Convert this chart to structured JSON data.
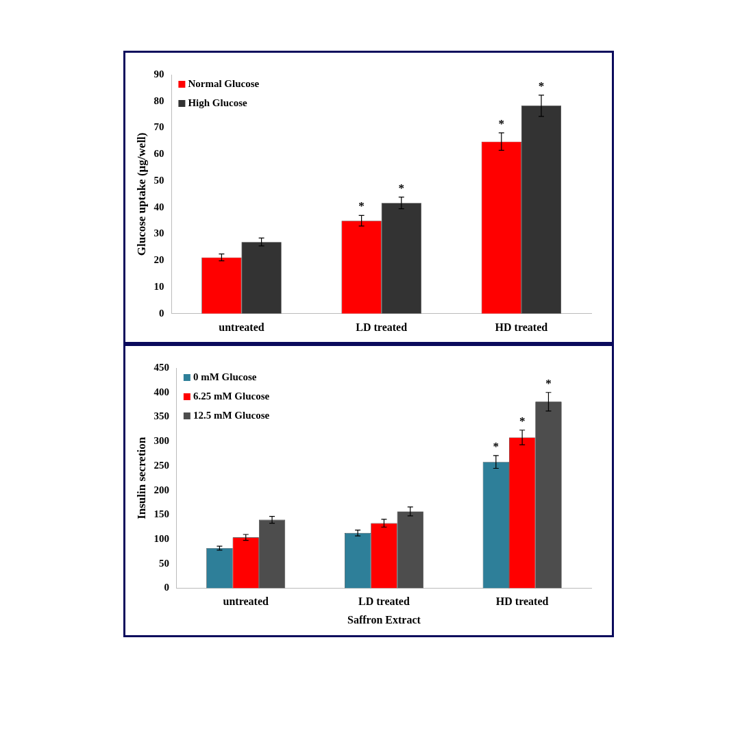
{
  "chart_data": [
    {
      "type": "bar",
      "ylabel": "Glucose uptake (µg/well)",
      "categories": [
        "untreated",
        "LD treated",
        "HD treated"
      ],
      "ylim": [
        0,
        90
      ],
      "yticks": [
        0,
        10,
        20,
        30,
        40,
        50,
        60,
        70,
        80,
        90
      ],
      "grid": false,
      "legend": "top left",
      "series": [
        {
          "name": "Normal Glucose",
          "color": "#ff0000",
          "values": [
            21.2,
            35,
            64.8
          ],
          "errors": [
            1.3,
            2,
            3.3
          ],
          "value_labels": [
            null,
            "*",
            "*"
          ]
        },
        {
          "name": "High Glucose",
          "color": "#333333",
          "values": [
            27,
            41.7,
            78.3
          ],
          "errors": [
            1.5,
            2.2,
            4
          ],
          "value_labels": [
            null,
            "*",
            "*"
          ]
        }
      ]
    },
    {
      "type": "bar",
      "ylabel": "Insulin secretion",
      "xlabel": "Saffron Extract",
      "categories": [
        "untreated",
        "LD treated",
        "HD treated"
      ],
      "ylim": [
        0,
        450
      ],
      "yticks": [
        0,
        50,
        100,
        150,
        200,
        250,
        300,
        350,
        400,
        450
      ],
      "grid": false,
      "legend": "top left",
      "series": [
        {
          "name": "0 mM Glucose",
          "color": "#2e7f99",
          "values": [
            82,
            113,
            258
          ],
          "errors": [
            4,
            6,
            13
          ],
          "value_labels": [
            null,
            null,
            "*"
          ]
        },
        {
          "name": "6.25 mM Glucose",
          "color": "#ff0000",
          "values": [
            104,
            133,
            308
          ],
          "errors": [
            6,
            8,
            15
          ],
          "value_labels": [
            null,
            null,
            "*"
          ]
        },
        {
          "name": "12.5 mM Glucose",
          "color": "#4d4d4d",
          "values": [
            140,
            157,
            381
          ],
          "errors": [
            7,
            9,
            19
          ],
          "value_labels": [
            null,
            null,
            "*"
          ]
        }
      ]
    }
  ]
}
